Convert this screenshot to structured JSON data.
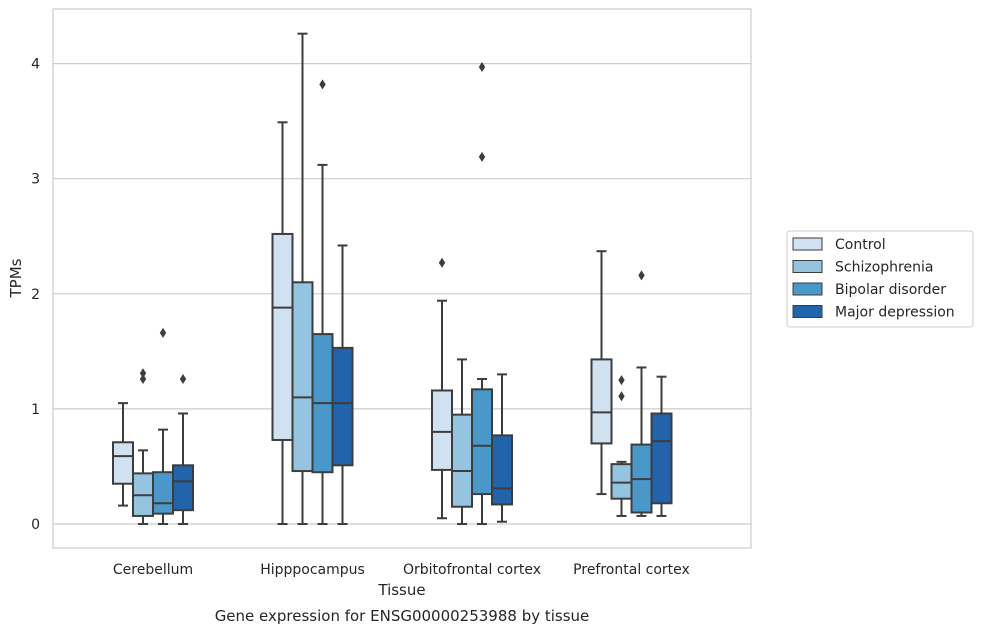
{
  "caption": "Gene expression for ENSG00000253988 by tissue",
  "chart_data": {
    "type": "boxplot",
    "xlabel": "Tissue",
    "ylabel": "TPMs",
    "ylim": [
      -0.2,
      4.45
    ],
    "yticks": [
      0,
      1,
      2,
      3,
      4
    ],
    "grid": "horizontal",
    "legend_position": "right",
    "categories": [
      "Cerebellum",
      "Hipppocampus",
      "Orbitofrontal cortex",
      "Prefrontal cortex"
    ],
    "series": [
      {
        "name": "Control",
        "color": "#d0e1f2",
        "boxes": [
          {
            "whisker_low": 0.16,
            "q1": 0.35,
            "median": 0.59,
            "q3": 0.71,
            "whisker_high": 1.05,
            "outliers": []
          },
          {
            "whisker_low": 0.0,
            "q1": 0.73,
            "median": 1.88,
            "q3": 2.52,
            "whisker_high": 3.49,
            "outliers": []
          },
          {
            "whisker_low": 0.05,
            "q1": 0.47,
            "median": 0.8,
            "q3": 1.16,
            "whisker_high": 1.94,
            "outliers": [
              2.27
            ]
          },
          {
            "whisker_low": 0.26,
            "q1": 0.7,
            "median": 0.97,
            "q3": 1.43,
            "whisker_high": 2.37,
            "outliers": []
          }
        ]
      },
      {
        "name": "Schizophrenia",
        "color": "#94c4df",
        "boxes": [
          {
            "whisker_low": 0.0,
            "q1": 0.07,
            "median": 0.25,
            "q3": 0.44,
            "whisker_high": 0.64,
            "outliers": [
              1.26,
              1.31
            ]
          },
          {
            "whisker_low": 0.0,
            "q1": 0.46,
            "median": 1.1,
            "q3": 2.1,
            "whisker_high": 4.26,
            "outliers": []
          },
          {
            "whisker_low": 0.0,
            "q1": 0.15,
            "median": 0.46,
            "q3": 0.95,
            "whisker_high": 1.43,
            "outliers": []
          },
          {
            "whisker_low": 0.07,
            "q1": 0.22,
            "median": 0.36,
            "q3": 0.52,
            "whisker_high": 0.54,
            "outliers": [
              1.11,
              1.25
            ]
          }
        ]
      },
      {
        "name": "Bipolar disorder",
        "color": "#4a98c9",
        "boxes": [
          {
            "whisker_low": 0.0,
            "q1": 0.09,
            "median": 0.18,
            "q3": 0.45,
            "whisker_high": 0.82,
            "outliers": [
              1.66
            ]
          },
          {
            "whisker_low": 0.0,
            "q1": 0.45,
            "median": 1.05,
            "q3": 1.65,
            "whisker_high": 3.12,
            "outliers": [
              3.82
            ]
          },
          {
            "whisker_low": 0.0,
            "q1": 0.26,
            "median": 0.68,
            "q3": 1.17,
            "whisker_high": 1.26,
            "outliers": [
              3.19,
              3.97
            ]
          },
          {
            "whisker_low": 0.07,
            "q1": 0.1,
            "median": 0.39,
            "q3": 0.69,
            "whisker_high": 1.36,
            "outliers": [
              2.16
            ]
          }
        ]
      },
      {
        "name": "Major depression",
        "color": "#2164ab",
        "boxes": [
          {
            "whisker_low": 0.0,
            "q1": 0.12,
            "median": 0.37,
            "q3": 0.51,
            "whisker_high": 0.96,
            "outliers": [
              1.26
            ]
          },
          {
            "whisker_low": 0.0,
            "q1": 0.51,
            "median": 1.05,
            "q3": 1.53,
            "whisker_high": 2.42,
            "outliers": []
          },
          {
            "whisker_low": 0.02,
            "q1": 0.17,
            "median": 0.31,
            "q3": 0.77,
            "whisker_high": 1.3,
            "outliers": []
          },
          {
            "whisker_low": 0.07,
            "q1": 0.18,
            "median": 0.72,
            "q3": 0.96,
            "whisker_high": 1.28,
            "outliers": []
          }
        ]
      }
    ]
  }
}
